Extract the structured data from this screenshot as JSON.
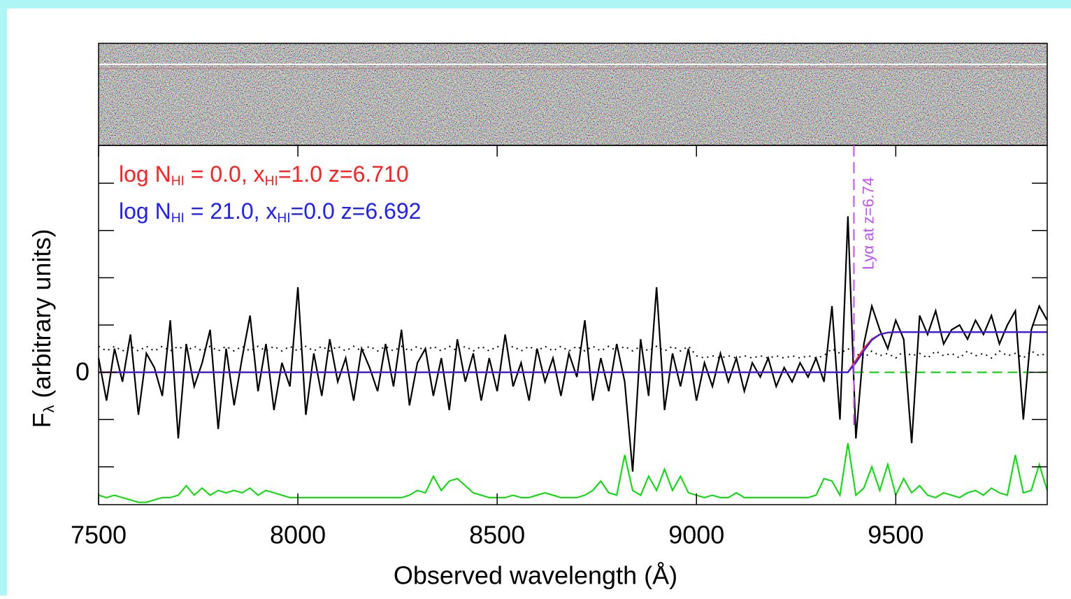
{
  "chart_data": {
    "type": "line",
    "x": [
      7500,
      7520,
      7540,
      7560,
      7580,
      7600,
      7620,
      7640,
      7660,
      7680,
      7700,
      7720,
      7740,
      7760,
      7780,
      7800,
      7820,
      7840,
      7860,
      7880,
      7900,
      7920,
      7940,
      7960,
      7980,
      8000,
      8020,
      8040,
      8060,
      8080,
      8100,
      8120,
      8140,
      8160,
      8180,
      8200,
      8220,
      8240,
      8260,
      8280,
      8300,
      8320,
      8340,
      8360,
      8380,
      8400,
      8420,
      8440,
      8460,
      8480,
      8500,
      8520,
      8540,
      8560,
      8580,
      8600,
      8620,
      8640,
      8660,
      8680,
      8700,
      8720,
      8740,
      8760,
      8780,
      8800,
      8820,
      8840,
      8860,
      8880,
      8900,
      8920,
      8940,
      8960,
      8980,
      9000,
      9020,
      9040,
      9060,
      9080,
      9100,
      9120,
      9140,
      9160,
      9180,
      9200,
      9220,
      9240,
      9260,
      9280,
      9300,
      9320,
      9340,
      9360,
      9380,
      9400,
      9420,
      9440,
      9460,
      9480,
      9500,
      9520,
      9540,
      9560,
      9580,
      9600,
      9620,
      9640,
      9660,
      9680,
      9700,
      9720,
      9740,
      9760,
      9780,
      9800,
      9820,
      9840,
      9860,
      9880
    ],
    "series": [
      {
        "color": "#000000",
        "style": "solid",
        "width": 2.2,
        "values": [
          0.3,
          -0.6,
          0.5,
          -0.2,
          0.8,
          -0.9,
          0.4,
          0.1,
          -0.5,
          1.1,
          -1.4,
          0.6,
          -0.3,
          0.2,
          0.9,
          -1.2,
          0.5,
          -0.7,
          0.3,
          1.2,
          -0.4,
          0.6,
          -0.8,
          0.2,
          -0.3,
          1.8,
          -0.9,
          0.4,
          -0.5,
          0.7,
          -0.2,
          0.3,
          -0.6,
          0.5,
          0.1,
          -0.4,
          0.6,
          -0.3,
          0.9,
          -0.7,
          0.2,
          0.5,
          -0.5,
          0.3,
          -0.8,
          0.7,
          -0.2,
          0.4,
          -0.6,
          0.3,
          -0.4,
          0.8,
          -0.3,
          0.2,
          -0.6,
          0.5,
          -0.2,
          0.3,
          -0.5,
          0.4,
          -0.1,
          1.1,
          -0.6,
          0.3,
          -0.4,
          0.6,
          -0.2,
          -2.1,
          0.7,
          -0.5,
          1.8,
          -0.8,
          0.4,
          -0.3,
          0.5,
          -0.6,
          0.2,
          -0.3,
          0.4,
          -0.2,
          0.3,
          -0.4,
          0.2,
          -0.1,
          0.3,
          -0.3,
          0.1,
          -0.2,
          0.2,
          -0.1,
          0.3,
          -0.2,
          1.4,
          -1.0,
          3.3,
          -1.4,
          0.6,
          1.4,
          0.9,
          0.5,
          1.1,
          0.7,
          -1.5,
          1.2,
          0.8,
          1.3,
          0.6,
          0.9,
          1.0,
          0.7,
          1.1,
          0.8,
          1.2,
          0.6,
          1.0,
          1.3,
          -1.0,
          0.9,
          1.4,
          1.1
        ]
      },
      {
        "color": "#000000",
        "style": "dotted",
        "width": 2,
        "values": [
          0.55,
          0.45,
          0.55,
          0.45,
          0.55,
          0.45,
          0.55,
          0.45,
          0.55,
          0.45,
          0.55,
          0.45,
          0.55,
          0.45,
          0.55,
          0.45,
          0.55,
          0.45,
          0.55,
          0.45,
          0.55,
          0.45,
          0.55,
          0.45,
          0.55,
          0.45,
          0.55,
          0.45,
          0.55,
          0.45,
          0.55,
          0.45,
          0.55,
          0.45,
          0.55,
          0.45,
          0.55,
          0.45,
          0.55,
          0.45,
          0.55,
          0.45,
          0.55,
          0.45,
          0.55,
          0.45,
          0.55,
          0.45,
          0.55,
          0.45,
          0.55,
          0.45,
          0.55,
          0.45,
          0.55,
          0.45,
          0.55,
          0.45,
          0.55,
          0.45,
          0.55,
          0.45,
          0.55,
          0.45,
          0.55,
          0.45,
          0.55,
          0.45,
          0.55,
          0.45,
          0.55,
          0.45,
          0.55,
          0.45,
          0.55,
          0.35,
          0.3,
          0.35,
          0.3,
          0.35,
          0.3,
          0.35,
          0.3,
          0.35,
          0.3,
          0.35,
          0.3,
          0.35,
          0.3,
          0.35,
          0.3,
          0.35,
          0.5,
          0.4,
          0.5,
          0.4,
          0.3,
          0.45,
          0.35,
          0.4,
          0.3,
          0.45,
          0.35,
          0.4,
          0.3,
          0.45,
          0.35,
          0.4,
          0.3,
          0.45,
          0.35,
          0.4,
          0.3,
          0.45,
          0.35,
          0.4,
          0.3,
          0.45,
          0.35,
          0.4
        ]
      },
      {
        "name": [
          "log N",
          "HI",
          " =  0.0, x",
          "HI",
          "=1.0  z=6.710"
        ],
        "color": "#ff2020",
        "style": "solid",
        "width": 2.5,
        "values": [
          0,
          0,
          0,
          0,
          0,
          0,
          0,
          0,
          0,
          0,
          0,
          0,
          0,
          0,
          0,
          0,
          0,
          0,
          0,
          0,
          0,
          0,
          0,
          0,
          0,
          0,
          0,
          0,
          0,
          0,
          0,
          0,
          0,
          0,
          0,
          0,
          0,
          0,
          0,
          0,
          0,
          0,
          0,
          0,
          0,
          0,
          0,
          0,
          0,
          0,
          0,
          0,
          0,
          0,
          0,
          0,
          0,
          0,
          0,
          0,
          0,
          0,
          0,
          0,
          0,
          0,
          0,
          0,
          0,
          0,
          0,
          0,
          0,
          0,
          0,
          0,
          0,
          0,
          0,
          0,
          0,
          0,
          0,
          0,
          0,
          0,
          0,
          0,
          0,
          0,
          0,
          0,
          0,
          0,
          0,
          0.25,
          0.5,
          0.7,
          0.8,
          0.84,
          0.85,
          0.85,
          0.85,
          0.85,
          0.85,
          0.85,
          0.85,
          0.85,
          0.85,
          0.85,
          0.85,
          0.85,
          0.85,
          0.85,
          0.85,
          0.85,
          0.85,
          0.85,
          0.85,
          0.85
        ]
      },
      {
        "name": [
          "log N",
          "HI",
          " = 21.0, x",
          "HI",
          "=0.0  z=6.692"
        ],
        "color": "#2020ff",
        "style": "solid",
        "width": 2,
        "values": [
          0,
          0,
          0,
          0,
          0,
          0,
          0,
          0,
          0,
          0,
          0,
          0,
          0,
          0,
          0,
          0,
          0,
          0,
          0,
          0,
          0,
          0,
          0,
          0,
          0,
          0,
          0,
          0,
          0,
          0,
          0,
          0,
          0,
          0,
          0,
          0,
          0,
          0,
          0,
          0,
          0,
          0,
          0,
          0,
          0,
          0,
          0,
          0,
          0,
          0,
          0,
          0,
          0,
          0,
          0,
          0,
          0,
          0,
          0,
          0,
          0,
          0,
          0,
          0,
          0,
          0,
          0,
          0,
          0,
          0,
          0,
          0,
          0,
          0,
          0,
          0,
          0,
          0,
          0,
          0,
          0,
          0,
          0,
          0,
          0,
          0,
          0,
          0,
          0,
          0,
          0,
          0,
          0,
          0,
          0,
          0.2,
          0.45,
          0.68,
          0.8,
          0.84,
          0.85,
          0.85,
          0.85,
          0.85,
          0.85,
          0.85,
          0.85,
          0.85,
          0.85,
          0.85,
          0.85,
          0.85,
          0.85,
          0.85,
          0.85,
          0.85,
          0.85,
          0.85,
          0.85,
          0.85
        ]
      },
      {
        "color": "#00e000",
        "style": "solid",
        "width": 2,
        "values": [
          -2.6,
          -2.65,
          -2.6,
          -2.65,
          -2.7,
          -2.75,
          -2.75,
          -2.7,
          -2.65,
          -2.65,
          -2.6,
          -2.4,
          -2.6,
          -2.45,
          -2.6,
          -2.5,
          -2.55,
          -2.5,
          -2.55,
          -2.45,
          -2.6,
          -2.5,
          -2.55,
          -2.6,
          -2.65,
          -2.65,
          -2.65,
          -2.65,
          -2.65,
          -2.65,
          -2.65,
          -2.65,
          -2.65,
          -2.65,
          -2.65,
          -2.65,
          -2.65,
          -2.65,
          -2.65,
          -2.6,
          -2.5,
          -2.55,
          -2.2,
          -2.5,
          -2.3,
          -2.25,
          -2.4,
          -2.55,
          -2.6,
          -2.65,
          -2.65,
          -2.65,
          -2.6,
          -2.65,
          -2.65,
          -2.6,
          -2.55,
          -2.6,
          -2.65,
          -2.65,
          -2.65,
          -2.6,
          -2.5,
          -2.3,
          -2.55,
          -2.6,
          -1.75,
          -2.5,
          -2.6,
          -2.2,
          -2.5,
          -2.05,
          -2.5,
          -2.2,
          -2.55,
          -2.6,
          -2.65,
          -2.6,
          -2.65,
          -2.65,
          -2.55,
          -2.65,
          -2.65,
          -2.65,
          -2.65,
          -2.65,
          -2.65,
          -2.65,
          -2.65,
          -2.65,
          -2.6,
          -2.25,
          -2.3,
          -2.6,
          -1.5,
          -2.6,
          -2.45,
          -2.0,
          -2.5,
          -1.95,
          -2.6,
          -2.25,
          -2.55,
          -2.4,
          -2.6,
          -2.65,
          -2.55,
          -2.6,
          -2.65,
          -2.55,
          -2.5,
          -2.6,
          -2.45,
          -2.55,
          -2.6,
          -1.75,
          -2.55,
          -2.5,
          -1.95,
          -2.5
        ]
      }
    ],
    "xlim": [
      7500,
      9880
    ],
    "xticks": [
      7500,
      8000,
      8500,
      9000,
      9500
    ],
    "ylim": [
      -2.8,
      4.8
    ],
    "yticks": [
      0
    ],
    "yminorticks": [
      -2,
      -1,
      1,
      2,
      3,
      4
    ],
    "xlabel": "Observed wavelength (Å)",
    "ylabel": [
      "F",
      "λ",
      " (arbitrary units)"
    ],
    "annotation": {
      "text": "Lyα at z=6.74",
      "x": 9395,
      "color": "#c050ff",
      "baseline_color": "#00d000"
    }
  }
}
